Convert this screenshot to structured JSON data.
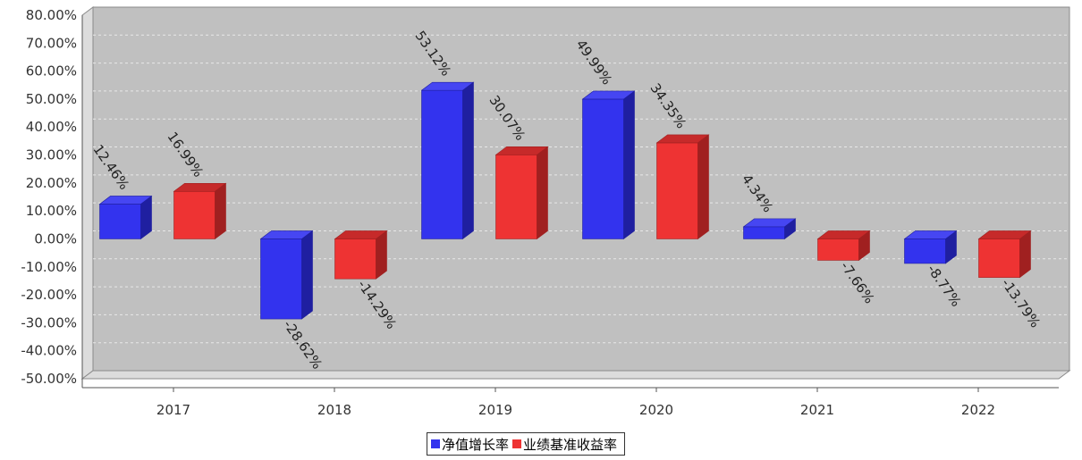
{
  "chart_data": {
    "type": "bar",
    "categories": [
      "2017",
      "2018",
      "2019",
      "2020",
      "2021",
      "2022"
    ],
    "series": [
      {
        "name": "净值增长率",
        "values": [
          12.46,
          -28.62,
          53.12,
          49.99,
          4.34,
          -8.77
        ],
        "labels": [
          "12.46%",
          "-28.62%",
          "53.12%",
          "49.99%",
          "4.34%",
          "-8.77%"
        ],
        "color": "#3333ee",
        "side_color": "#1f1fa0",
        "top_color": "#4646f2"
      },
      {
        "name": "业绩基准收益率",
        "values": [
          16.99,
          -14.29,
          30.07,
          34.35,
          -7.66,
          -13.79
        ],
        "labels": [
          "16.99%",
          "-14.29%",
          "30.07%",
          "34.35%",
          "-7.66%",
          "-13.79%"
        ],
        "color": "#ee3333",
        "side_color": "#a02020",
        "top_color": "#c62a2a"
      }
    ],
    "y_tick_labels": [
      "80.00%",
      "70.00%",
      "60.00%",
      "50.00%",
      "40.00%",
      "30.00%",
      "20.00%",
      "10.00%",
      "0.00%",
      "-10.00%",
      "-20.00%",
      "-30.00%",
      "-40.00%",
      "-50.00%"
    ],
    "ylim": [
      -50,
      80
    ],
    "y_tick_step": 10,
    "grid": true,
    "legend_position": "bottom-center",
    "plot_background": "#c0c0c0",
    "title": "",
    "xlabel": "",
    "ylabel": ""
  }
}
